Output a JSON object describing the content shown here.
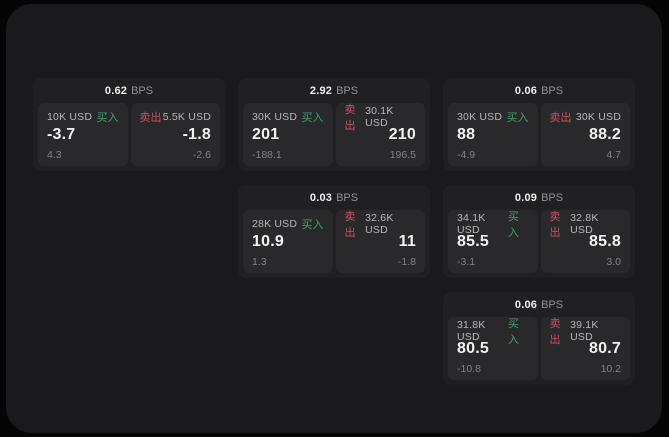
{
  "labels": {
    "bps_unit": "BPS",
    "buy": "买入",
    "sell": "卖出"
  },
  "colors": {
    "panel_bg": "#1a1a1c",
    "card_bg": "#202022",
    "subpanel_bg": "#29292b",
    "buy_green": "#42a169",
    "sell_red": "#ca4f63"
  },
  "cards": [
    {
      "bps": "0.62",
      "buy": {
        "amount": "10K USD",
        "value": "-3.7",
        "delta": "4.3"
      },
      "sell": {
        "amount": "5.5K USD",
        "value": "-1.8",
        "delta": "-2.6"
      }
    },
    {
      "bps": "2.92",
      "buy": {
        "amount": "30K USD",
        "value": "201",
        "delta": "-188.1"
      },
      "sell": {
        "amount": "30.1K USD",
        "value": "210",
        "delta": "196.5"
      }
    },
    {
      "bps": "0.06",
      "buy": {
        "amount": "30K USD",
        "value": "88",
        "delta": "-4.9"
      },
      "sell": {
        "amount": "30K USD",
        "value": "88.2",
        "delta": "4.7"
      }
    },
    {
      "bps": "0.03",
      "buy": {
        "amount": "28K USD",
        "value": "10.9",
        "delta": "1.3"
      },
      "sell": {
        "amount": "32.6K USD",
        "value": "11",
        "delta": "-1.8"
      }
    },
    {
      "bps": "0.09",
      "buy": {
        "amount": "34.1K USD",
        "value": "85.5",
        "delta": "-3.1"
      },
      "sell": {
        "amount": "32.8K USD",
        "value": "85.8",
        "delta": "3.0"
      }
    },
    {
      "bps": "0.06",
      "buy": {
        "amount": "31.8K USD",
        "value": "80.5",
        "delta": "-10.8"
      },
      "sell": {
        "amount": "39.1K USD",
        "value": "80.7",
        "delta": "10.2"
      }
    }
  ]
}
